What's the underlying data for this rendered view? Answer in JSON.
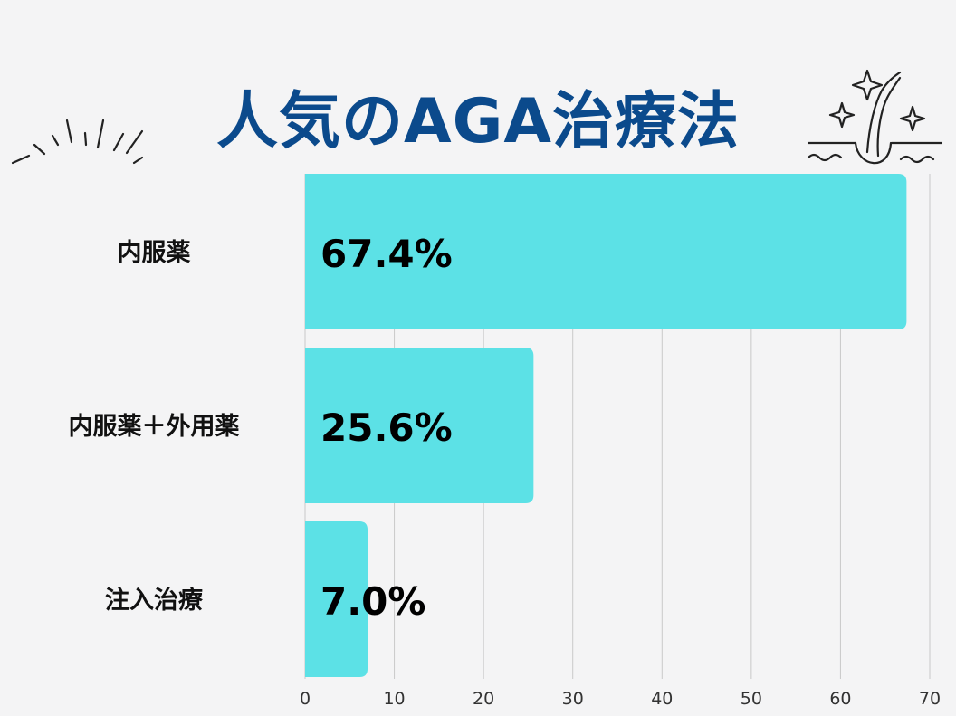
{
  "chart_data": {
    "type": "bar",
    "orientation": "horizontal",
    "title": "人気のAGA治療法",
    "categories": [
      "内服薬",
      "内服薬＋外用薬",
      "注入治療"
    ],
    "values": [
      67.4,
      25.6,
      7.0
    ],
    "value_labels": [
      "67.4%",
      "25.6%",
      "7.0%"
    ],
    "xlim": [
      0,
      70
    ],
    "xticks": [
      "0",
      "10",
      "20",
      "30",
      "40",
      "50",
      "60",
      "70"
    ],
    "grid": "vertical",
    "bar_color": "#5ce1e6",
    "title_color": "#0b4a8c"
  },
  "decorations": {
    "left": "sparkle-burst-icon",
    "right": "hair-follicle-icon"
  }
}
